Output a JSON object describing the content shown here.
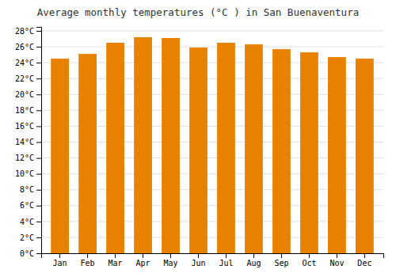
{
  "chart_data": {
    "type": "bar",
    "title": "Average monthly temperatures (°C ) in San Buenaventura",
    "categories": [
      "Jan",
      "Feb",
      "Mar",
      "Apr",
      "May",
      "Jun",
      "Jul",
      "Aug",
      "Sep",
      "Oct",
      "Nov",
      "Dec"
    ],
    "values": [
      24.5,
      25.1,
      26.5,
      27.2,
      27.1,
      25.9,
      26.5,
      26.3,
      25.7,
      25.3,
      24.7,
      24.5
    ],
    "color": "#E88000",
    "ylim": [
      0,
      28.5
    ],
    "yticks": [
      {
        "value": 0,
        "label": "0°C"
      },
      {
        "value": 2,
        "label": "2°C"
      },
      {
        "value": 4,
        "label": "4°C"
      },
      {
        "value": 6,
        "label": "6°C"
      },
      {
        "value": 8,
        "label": "8°C"
      },
      {
        "value": 10,
        "label": "10°C"
      },
      {
        "value": 12,
        "label": "12°C"
      },
      {
        "value": 14,
        "label": "14°C"
      },
      {
        "value": 16,
        "label": "16°C"
      },
      {
        "value": 18,
        "label": "18°C"
      },
      {
        "value": 20,
        "label": "20°C"
      },
      {
        "value": 22,
        "label": "22°C"
      },
      {
        "value": 24,
        "label": "24°C"
      },
      {
        "value": 26,
        "label": "26°C"
      },
      {
        "value": 28,
        "label": "28°C"
      }
    ],
    "grid": true
  }
}
